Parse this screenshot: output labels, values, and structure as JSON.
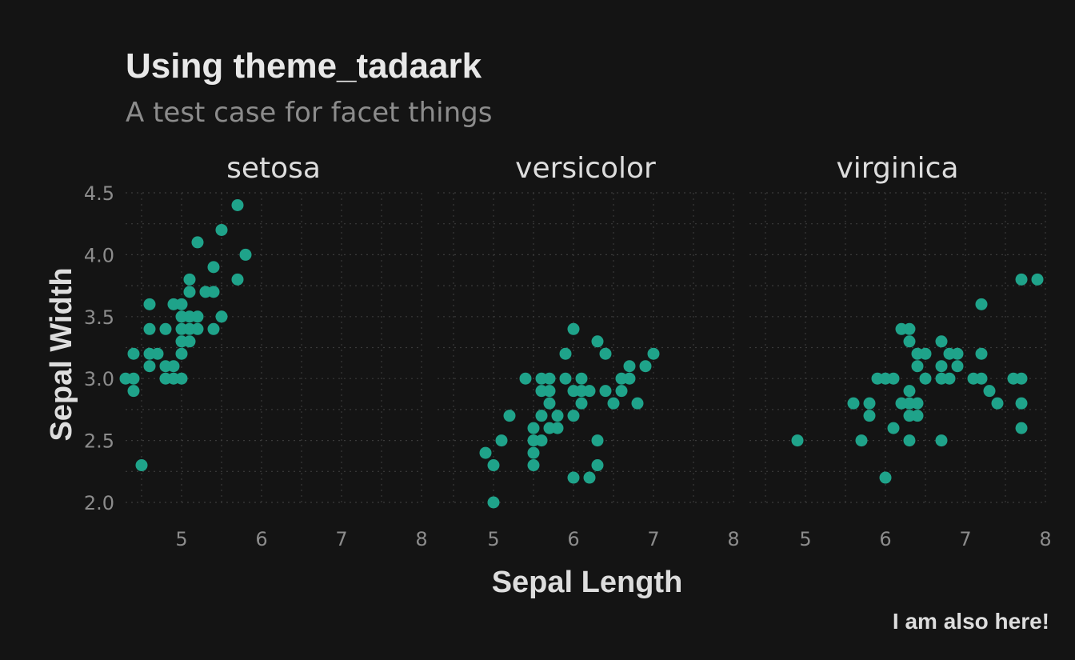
{
  "chart_data": {
    "type": "scatter",
    "title": "Using theme_tadaark",
    "subtitle": "A test case for facet things",
    "xlabel": "Sepal Length",
    "ylabel": "Sepal Width",
    "caption": "I am also here!",
    "xlim": [
      4.3,
      8.0
    ],
    "ylim": [
      2.0,
      4.5
    ],
    "x_ticks": [
      5,
      6,
      7,
      8
    ],
    "y_ticks": [
      "2.0",
      "2.5",
      "3.0",
      "3.5",
      "4.0",
      "4.5"
    ],
    "grid": true,
    "point_color": "#1fa38a",
    "background_color": "#141414",
    "facets": [
      {
        "label": "setosa",
        "points": [
          [
            4.3,
            3.0
          ],
          [
            4.4,
            2.9
          ],
          [
            4.4,
            3.0
          ],
          [
            4.4,
            3.2
          ],
          [
            4.5,
            2.3
          ],
          [
            4.6,
            3.1
          ],
          [
            4.6,
            3.2
          ],
          [
            4.6,
            3.4
          ],
          [
            4.6,
            3.6
          ],
          [
            4.7,
            3.2
          ],
          [
            4.8,
            3.0
          ],
          [
            4.8,
            3.1
          ],
          [
            4.8,
            3.4
          ],
          [
            4.9,
            3.0
          ],
          [
            4.9,
            3.1
          ],
          [
            4.9,
            3.6
          ],
          [
            5.0,
            3.0
          ],
          [
            5.0,
            3.2
          ],
          [
            5.0,
            3.3
          ],
          [
            5.0,
            3.4
          ],
          [
            5.0,
            3.5
          ],
          [
            5.0,
            3.6
          ],
          [
            5.1,
            3.3
          ],
          [
            5.1,
            3.4
          ],
          [
            5.1,
            3.5
          ],
          [
            5.1,
            3.7
          ],
          [
            5.1,
            3.8
          ],
          [
            5.2,
            3.4
          ],
          [
            5.2,
            3.5
          ],
          [
            5.2,
            4.1
          ],
          [
            5.3,
            3.7
          ],
          [
            5.4,
            3.4
          ],
          [
            5.4,
            3.7
          ],
          [
            5.4,
            3.9
          ],
          [
            5.5,
            3.5
          ],
          [
            5.5,
            4.2
          ],
          [
            5.7,
            3.8
          ],
          [
            5.7,
            4.4
          ],
          [
            5.8,
            4.0
          ]
        ]
      },
      {
        "label": "versicolor",
        "points": [
          [
            4.9,
            2.4
          ],
          [
            5.0,
            2.0
          ],
          [
            5.0,
            2.3
          ],
          [
            5.1,
            2.5
          ],
          [
            5.2,
            2.7
          ],
          [
            5.4,
            3.0
          ],
          [
            5.5,
            2.3
          ],
          [
            5.5,
            2.4
          ],
          [
            5.5,
            2.5
          ],
          [
            5.5,
            2.6
          ],
          [
            5.6,
            2.5
          ],
          [
            5.6,
            2.7
          ],
          [
            5.6,
            2.9
          ],
          [
            5.6,
            3.0
          ],
          [
            5.7,
            2.6
          ],
          [
            5.7,
            2.8
          ],
          [
            5.7,
            2.9
          ],
          [
            5.7,
            3.0
          ],
          [
            5.8,
            2.6
          ],
          [
            5.8,
            2.7
          ],
          [
            5.9,
            3.0
          ],
          [
            5.9,
            3.2
          ],
          [
            6.0,
            2.2
          ],
          [
            6.0,
            2.7
          ],
          [
            6.0,
            2.9
          ],
          [
            6.0,
            3.4
          ],
          [
            6.1,
            2.8
          ],
          [
            6.1,
            2.9
          ],
          [
            6.1,
            3.0
          ],
          [
            6.2,
            2.2
          ],
          [
            6.2,
            2.9
          ],
          [
            6.3,
            2.3
          ],
          [
            6.3,
            2.5
          ],
          [
            6.3,
            3.3
          ],
          [
            6.4,
            2.9
          ],
          [
            6.4,
            3.2
          ],
          [
            6.5,
            2.8
          ],
          [
            6.6,
            2.9
          ],
          [
            6.6,
            3.0
          ],
          [
            6.7,
            3.0
          ],
          [
            6.7,
            3.1
          ],
          [
            6.8,
            2.8
          ],
          [
            6.9,
            3.1
          ],
          [
            7.0,
            3.2
          ]
        ]
      },
      {
        "label": "virginica",
        "points": [
          [
            4.9,
            2.5
          ],
          [
            5.6,
            2.8
          ],
          [
            5.7,
            2.5
          ],
          [
            5.8,
            2.7
          ],
          [
            5.8,
            2.8
          ],
          [
            5.9,
            3.0
          ],
          [
            6.0,
            2.2
          ],
          [
            6.0,
            3.0
          ],
          [
            6.1,
            2.6
          ],
          [
            6.1,
            3.0
          ],
          [
            6.2,
            2.8
          ],
          [
            6.2,
            3.4
          ],
          [
            6.3,
            2.5
          ],
          [
            6.3,
            2.7
          ],
          [
            6.3,
            2.8
          ],
          [
            6.3,
            2.9
          ],
          [
            6.3,
            3.3
          ],
          [
            6.3,
            3.4
          ],
          [
            6.4,
            2.7
          ],
          [
            6.4,
            2.8
          ],
          [
            6.4,
            3.1
          ],
          [
            6.4,
            3.2
          ],
          [
            6.5,
            3.0
          ],
          [
            6.5,
            3.2
          ],
          [
            6.7,
            2.5
          ],
          [
            6.7,
            3.0
          ],
          [
            6.7,
            3.1
          ],
          [
            6.7,
            3.3
          ],
          [
            6.8,
            3.0
          ],
          [
            6.8,
            3.2
          ],
          [
            6.9,
            3.1
          ],
          [
            6.9,
            3.2
          ],
          [
            7.1,
            3.0
          ],
          [
            7.2,
            3.0
          ],
          [
            7.2,
            3.2
          ],
          [
            7.2,
            3.6
          ],
          [
            7.3,
            2.9
          ],
          [
            7.4,
            2.8
          ],
          [
            7.6,
            3.0
          ],
          [
            7.7,
            2.6
          ],
          [
            7.7,
            2.8
          ],
          [
            7.7,
            3.0
          ],
          [
            7.7,
            3.8
          ],
          [
            7.9,
            3.8
          ]
        ]
      }
    ]
  }
}
